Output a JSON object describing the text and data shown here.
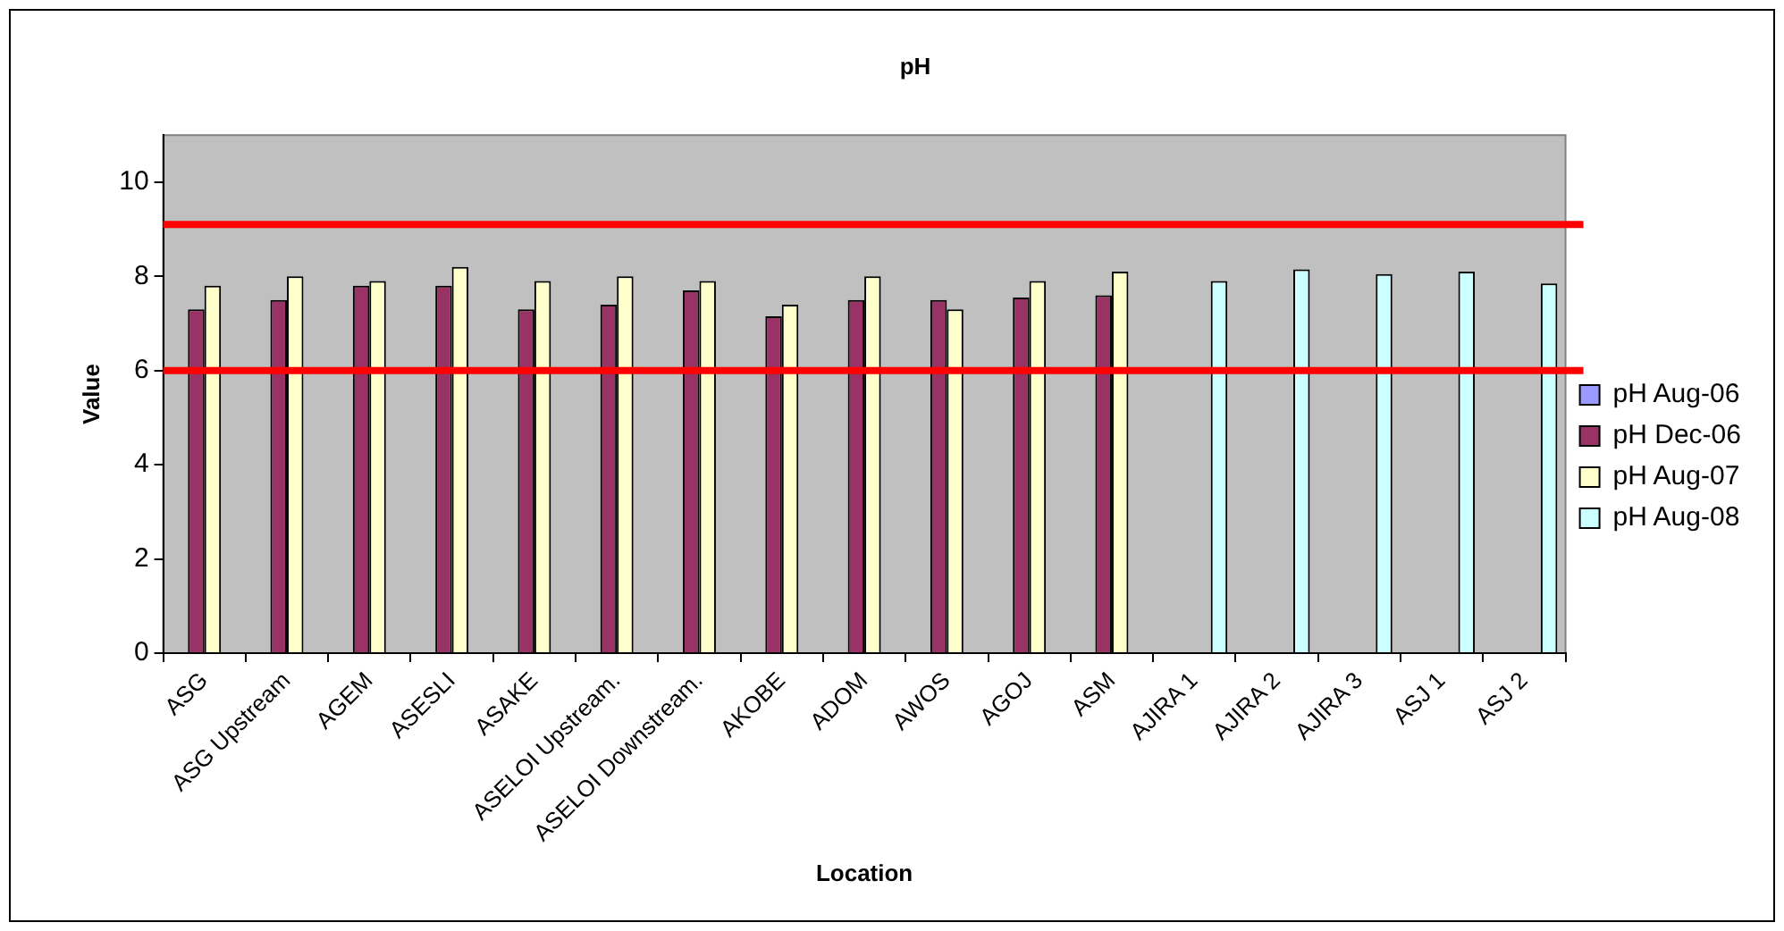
{
  "chart_data": {
    "type": "bar",
    "title": "pH",
    "xlabel": "Location",
    "ylabel": "Value",
    "categories": [
      "ASG",
      "ASG Upstream",
      "AGEM",
      "ASESLI",
      "ASAKE",
      "ASELOI Upstream.",
      "ASELOI Downstream.",
      "AKOBE",
      "ADOM",
      "AWOS",
      "AGOJ",
      "ASM",
      "AJIRA 1",
      "AJIRA 2",
      "AJIRA 3",
      "ASJ 1",
      "ASJ 2"
    ],
    "series": [
      {
        "name": "pH Aug-06",
        "color": "#9999ff",
        "values": [
          null,
          null,
          null,
          null,
          null,
          null,
          null,
          null,
          null,
          null,
          null,
          null,
          null,
          null,
          null,
          null,
          null
        ]
      },
      {
        "name": "pH Dec-06",
        "color": "#993366",
        "values": [
          7.3,
          7.5,
          7.8,
          7.8,
          7.3,
          7.4,
          7.7,
          7.15,
          7.5,
          7.5,
          7.55,
          7.6,
          null,
          null,
          null,
          null,
          null
        ]
      },
      {
        "name": "pH Aug-07",
        "color": "#ffffcc",
        "values": [
          7.8,
          8.0,
          7.9,
          8.2,
          7.9,
          8.0,
          7.9,
          7.4,
          8.0,
          7.3,
          7.9,
          8.1,
          null,
          null,
          null,
          null,
          null
        ]
      },
      {
        "name": "pH Aug-08",
        "color": "#ccffff",
        "values": [
          null,
          null,
          null,
          null,
          null,
          null,
          null,
          null,
          null,
          null,
          null,
          null,
          7.9,
          8.15,
          8.05,
          8.1,
          7.85
        ]
      }
    ],
    "ylim": [
      0,
      11
    ],
    "yticks": [
      0,
      2,
      4,
      6,
      8,
      10
    ],
    "grid": false,
    "legend": "right",
    "ref_lines": [
      {
        "axis": "y",
        "value": 6,
        "color": "#ff0000"
      },
      {
        "axis": "y",
        "value": 9.1,
        "color": "#ff0000"
      }
    ]
  }
}
